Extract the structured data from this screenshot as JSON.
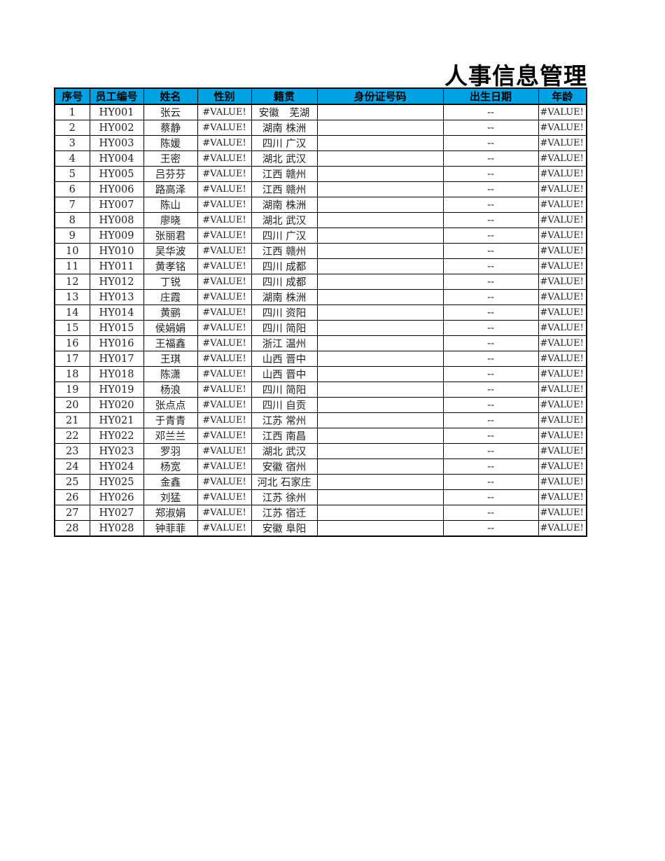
{
  "title": "人事信息管理",
  "header_color": "#00a2e3",
  "columns": [
    "序号",
    "员工编号",
    "姓名",
    "性别",
    "籍贯",
    "身份证号码",
    "出生日期",
    "年龄"
  ],
  "rows": [
    [
      "1",
      "HY001",
      "张云",
      "#VALUE!",
      "安徽　芜湖",
      "",
      "--",
      "#VALUE!"
    ],
    [
      "2",
      "HY002",
      "蔡静",
      "#VALUE!",
      "湖南 株洲",
      "",
      "--",
      "#VALUE!"
    ],
    [
      "3",
      "HY003",
      "陈媛",
      "#VALUE!",
      "四川 广汉",
      "",
      "--",
      "#VALUE!"
    ],
    [
      "4",
      "HY004",
      "王密",
      "#VALUE!",
      "湖北 武汉",
      "",
      "--",
      "#VALUE!"
    ],
    [
      "5",
      "HY005",
      "吕芬芬",
      "#VALUE!",
      "江西 赣州",
      "",
      "--",
      "#VALUE!"
    ],
    [
      "6",
      "HY006",
      "路高泽",
      "#VALUE!",
      "江西 赣州",
      "",
      "--",
      "#VALUE!"
    ],
    [
      "7",
      "HY007",
      "陈山",
      "#VALUE!",
      "湖南 株洲",
      "",
      "--",
      "#VALUE!"
    ],
    [
      "8",
      "HY008",
      "廖晓",
      "#VALUE!",
      "湖北 武汉",
      "",
      "--",
      "#VALUE!"
    ],
    [
      "9",
      "HY009",
      "张丽君",
      "#VALUE!",
      "四川 广汉",
      "",
      "--",
      "#VALUE!"
    ],
    [
      "10",
      "HY010",
      "吴华波",
      "#VALUE!",
      "江西 赣州",
      "",
      "--",
      "#VALUE!"
    ],
    [
      "11",
      "HY011",
      "黄孝铭",
      "#VALUE!",
      "四川 成都",
      "",
      "--",
      "#VALUE!"
    ],
    [
      "12",
      "HY012",
      "丁锐",
      "#VALUE!",
      "四川 成都",
      "",
      "--",
      "#VALUE!"
    ],
    [
      "13",
      "HY013",
      "庄霞",
      "#VALUE!",
      "湖南 株洲",
      "",
      "--",
      "#VALUE!"
    ],
    [
      "14",
      "HY014",
      "黄鹂",
      "#VALUE!",
      "四川 资阳",
      "",
      "--",
      "#VALUE!"
    ],
    [
      "15",
      "HY015",
      "侯娟娟",
      "#VALUE!",
      "四川 简阳",
      "",
      "--",
      "#VALUE!"
    ],
    [
      "16",
      "HY016",
      "王福鑫",
      "#VALUE!",
      "浙江 温州",
      "",
      "--",
      "#VALUE!"
    ],
    [
      "17",
      "HY017",
      "王琪",
      "#VALUE!",
      "山西 晋中",
      "",
      "--",
      "#VALUE!"
    ],
    [
      "18",
      "HY018",
      "陈潇",
      "#VALUE!",
      "山西 晋中",
      "",
      "--",
      "#VALUE!"
    ],
    [
      "19",
      "HY019",
      "杨浪",
      "#VALUE!",
      "四川 简阳",
      "",
      "--",
      "#VALUE!"
    ],
    [
      "20",
      "HY020",
      "张点点",
      "#VALUE!",
      "四川 自贡",
      "",
      "--",
      "#VALUE!"
    ],
    [
      "21",
      "HY021",
      "于青青",
      "#VALUE!",
      "江苏 常州",
      "",
      "--",
      "#VALUE!"
    ],
    [
      "22",
      "HY022",
      "邓兰兰",
      "#VALUE!",
      "江西 南昌",
      "",
      "--",
      "#VALUE!"
    ],
    [
      "23",
      "HY023",
      "罗羽",
      "#VALUE!",
      "湖北 武汉",
      "",
      "--",
      "#VALUE!"
    ],
    [
      "24",
      "HY024",
      "杨宽",
      "#VALUE!",
      "安徽 宿州",
      "",
      "--",
      "#VALUE!"
    ],
    [
      "25",
      "HY025",
      "金鑫",
      "#VALUE!",
      "河北 石家庄",
      "",
      "--",
      "#VALUE!"
    ],
    [
      "26",
      "HY026",
      "刘猛",
      "#VALUE!",
      "江苏 徐州",
      "",
      "--",
      "#VALUE!"
    ],
    [
      "27",
      "HY027",
      "郑淑娟",
      "#VALUE!",
      "江苏 宿迁",
      "",
      "--",
      "#VALUE!"
    ],
    [
      "28",
      "HY028",
      "钟菲菲",
      "#VALUE!",
      "安徽 阜阳",
      "",
      "--",
      "#VALUE!"
    ]
  ]
}
